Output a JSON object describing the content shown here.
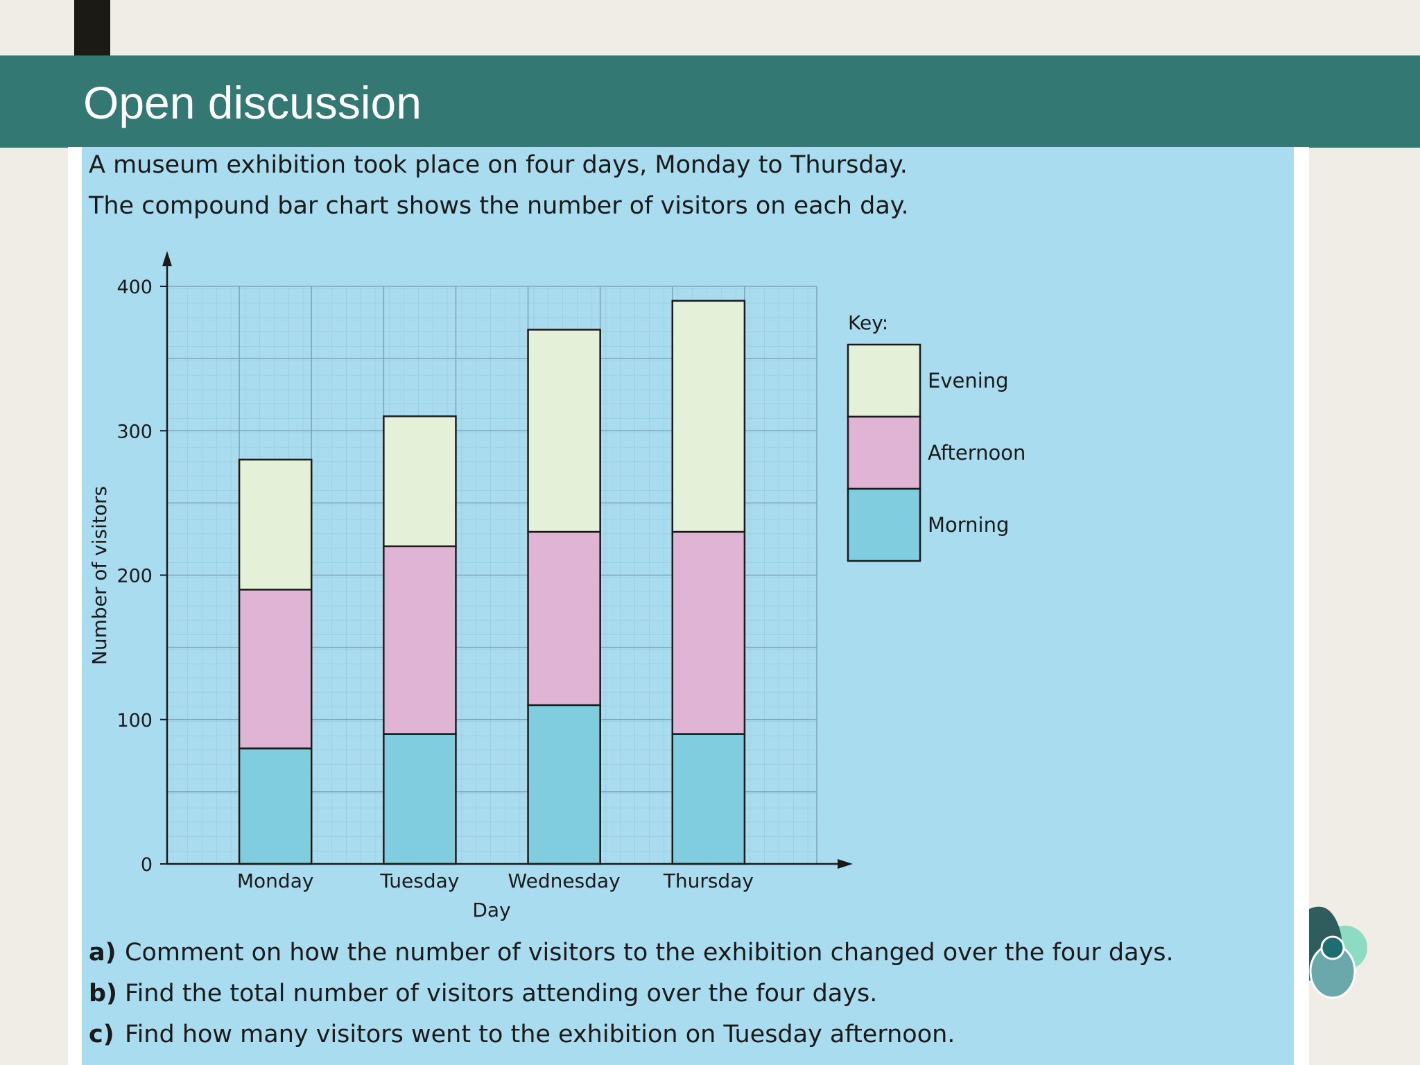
{
  "slide": {
    "title": "Open discussion",
    "intro_lines": [
      "A museum exhibition took place on four days, Monday to Thursday.",
      "The compound bar chart shows the number of visitors on each day."
    ],
    "questions": [
      {
        "letter": "a)",
        "text": "Comment on how the number of visitors to the exhibition changed over the four days."
      },
      {
        "letter": "b)",
        "text": "Find the total number of visitors attending over the four days."
      },
      {
        "letter": "c)",
        "text": "Find how many visitors went to the exhibition on Tuesday afternoon."
      }
    ]
  },
  "colors": {
    "header": "#347873",
    "panel": "#aadcf0",
    "morning": "#80cde0",
    "afternoon": "#e0b4d4",
    "evening": "#e4f0d8"
  },
  "chart_data": {
    "type": "bar",
    "stacked": true,
    "categories": [
      "Monday",
      "Tuesday",
      "Wednesday",
      "Thursday"
    ],
    "series": [
      {
        "name": "Morning",
        "values": [
          80,
          90,
          110,
          90
        ]
      },
      {
        "name": "Afternoon",
        "values": [
          110,
          130,
          120,
          140
        ]
      },
      {
        "name": "Evening",
        "values": [
          90,
          90,
          140,
          160
        ]
      }
    ],
    "title": "",
    "xlabel": "Day",
    "ylabel": "Number of visitors",
    "ylim": [
      0,
      400
    ],
    "yticks": [
      0,
      100,
      200,
      300,
      400
    ],
    "legend_title": "Key:",
    "legend_position": "right",
    "grid": true
  }
}
